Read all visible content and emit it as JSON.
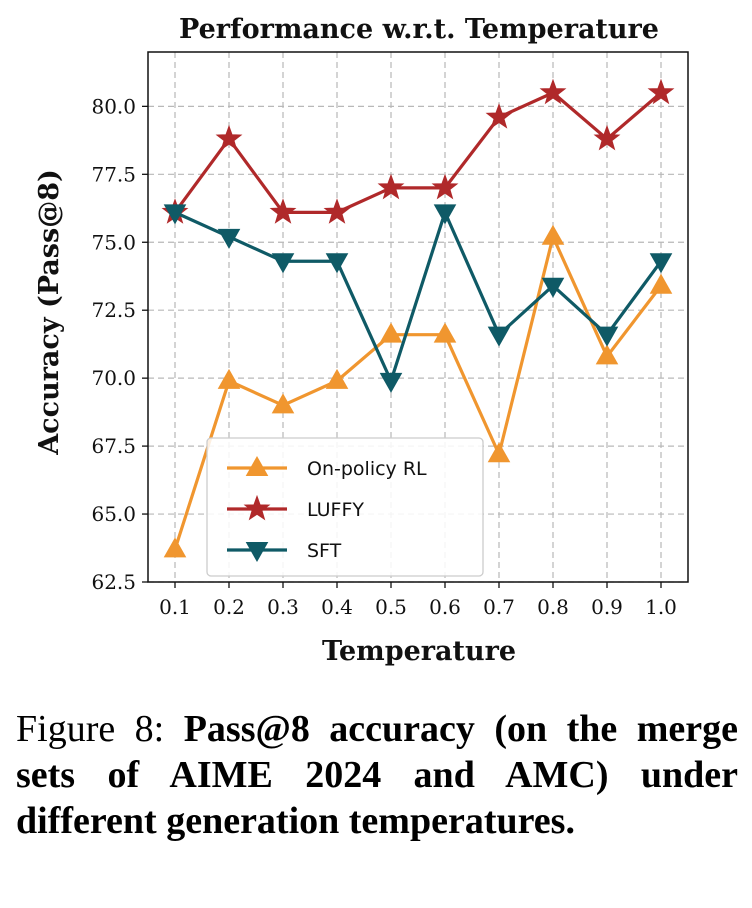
{
  "chart_data": {
    "type": "line",
    "title": "Performance w.r.t. Temperature",
    "xlabel": "Temperature",
    "ylabel": "Accuracy (Pass@8)",
    "x": [
      0.1,
      0.2,
      0.3,
      0.4,
      0.5,
      0.6,
      0.7,
      0.8,
      0.9,
      1.0
    ],
    "x_tick_labels": [
      "0.1",
      "0.2",
      "0.3",
      "0.4",
      "0.5",
      "0.6",
      "0.7",
      "0.8",
      "0.9",
      "1.0"
    ],
    "y_ticks": [
      62.5,
      65.0,
      67.5,
      70.0,
      72.5,
      75.0,
      77.5,
      80.0
    ],
    "y_tick_labels": [
      "62.5",
      "65.0",
      "67.5",
      "70.0",
      "72.5",
      "75.0",
      "77.5",
      "80.0"
    ],
    "xlim": [
      0.05,
      1.05
    ],
    "ylim": [
      62.5,
      82.0
    ],
    "grid": true,
    "legend_position": "lower-left",
    "series": [
      {
        "name": "On-policy RL",
        "color": "#f0962f",
        "marker": "triangle-up",
        "values": [
          63.7,
          69.9,
          69.0,
          69.9,
          71.6,
          71.6,
          67.2,
          75.2,
          70.8,
          73.4
        ]
      },
      {
        "name": "LUFFY",
        "color": "#b0292a",
        "marker": "star",
        "values": [
          76.1,
          78.8,
          76.1,
          76.1,
          77.0,
          77.0,
          79.6,
          80.5,
          78.8,
          80.5
        ]
      },
      {
        "name": "SFT",
        "color": "#0f5a66",
        "marker": "triangle-down",
        "values": [
          76.1,
          75.2,
          74.3,
          74.3,
          69.9,
          76.1,
          71.6,
          73.4,
          71.6,
          74.3
        ]
      }
    ]
  },
  "caption": {
    "lead": "Figure 8: ",
    "text": "Pass@8 accuracy (on the merge sets of AIME 2024 and AMC) under different generation temperatures."
  }
}
